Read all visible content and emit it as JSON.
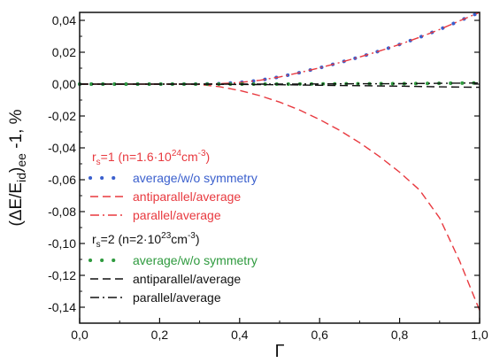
{
  "chart_data": {
    "type": "line",
    "xlabel": "Γ",
    "ylabel": {
      "open": "(ΔE/E",
      "sub1": "id",
      "close": ")",
      "sub2": "ee",
      "tail": " -1, %"
    },
    "xlim": [
      0.0,
      1.0
    ],
    "ylim": [
      -0.15,
      0.045
    ],
    "x_ticks": [
      {
        "value": 0.0,
        "label": "0,0"
      },
      {
        "value": 0.2,
        "label": "0,2"
      },
      {
        "value": 0.4,
        "label": "0,4"
      },
      {
        "value": 0.6,
        "label": "0,6"
      },
      {
        "value": 0.8,
        "label": "0,8"
      },
      {
        "value": 1.0,
        "label": "1,0"
      }
    ],
    "y_ticks": [
      {
        "value": 0.04,
        "label": "0,04"
      },
      {
        "value": 0.02,
        "label": "0,02"
      },
      {
        "value": 0.0,
        "label": "0,00"
      },
      {
        "value": -0.02,
        "label": "-0,02"
      },
      {
        "value": -0.04,
        "label": "-0,04"
      },
      {
        "value": -0.06,
        "label": "-0,06"
      },
      {
        "value": -0.08,
        "label": "-0,08"
      },
      {
        "value": -0.1,
        "label": "-0,10"
      },
      {
        "value": -0.12,
        "label": "-0,12"
      },
      {
        "value": -0.14,
        "label": "-0,14"
      }
    ],
    "grid": false,
    "legend_placement": "left",
    "groups": [
      {
        "header_parts": [
          "r",
          "s",
          "=1 (n=1.6·10",
          "24",
          "cm",
          "-3",
          ")"
        ],
        "color": "#e8393f"
      },
      {
        "header_parts": [
          "r",
          "s",
          "=2 (n=2·10",
          "23",
          "cm",
          "-3",
          ")"
        ],
        "color": "#111111"
      }
    ],
    "series": [
      {
        "name": "average/w/o symmetry",
        "group": 0,
        "color": "#3a5fcd",
        "style": "dots",
        "x": [
          0.0,
          0.05,
          0.1,
          0.15,
          0.2,
          0.25,
          0.3,
          0.35,
          0.4,
          0.45,
          0.5,
          0.55,
          0.6,
          0.65,
          0.7,
          0.75,
          0.8,
          0.85,
          0.9,
          0.95,
          1.0
        ],
        "y": [
          0.0,
          0.0,
          0.0,
          0.0,
          0.0,
          0.0,
          0.0,
          0.0003,
          0.001,
          0.0024,
          0.0045,
          0.0072,
          0.0102,
          0.0135,
          0.017,
          0.0208,
          0.0249,
          0.0294,
          0.0343,
          0.0397,
          0.045
        ]
      },
      {
        "name": "antiparallel/average",
        "group": 0,
        "color": "#e8393f",
        "style": "dash",
        "x": [
          0.0,
          0.05,
          0.1,
          0.15,
          0.2,
          0.25,
          0.3,
          0.35,
          0.4,
          0.45,
          0.5,
          0.55,
          0.6,
          0.65,
          0.7,
          0.75,
          0.8,
          0.85,
          0.9,
          0.95,
          1.0
        ],
        "y": [
          0.0,
          0.0,
          0.0,
          0.0,
          0.0,
          0.0,
          -0.0003,
          -0.0016,
          -0.004,
          -0.0072,
          -0.0113,
          -0.0163,
          -0.0222,
          -0.029,
          -0.0368,
          -0.0455,
          -0.0553,
          -0.0665,
          -0.084,
          -0.111,
          -0.142
        ]
      },
      {
        "name": "parallel/average",
        "group": 0,
        "color": "#e8393f",
        "style": "dashdot",
        "x": [
          0.0,
          0.05,
          0.1,
          0.15,
          0.2,
          0.25,
          0.3,
          0.35,
          0.4,
          0.45,
          0.5,
          0.55,
          0.6,
          0.65,
          0.7,
          0.75,
          0.8,
          0.85,
          0.9,
          0.95,
          1.0
        ],
        "y": [
          0.0,
          0.0,
          0.0,
          0.0,
          0.0,
          0.0,
          0.0,
          0.0003,
          0.001,
          0.0024,
          0.0045,
          0.0072,
          0.0102,
          0.0135,
          0.017,
          0.0208,
          0.0249,
          0.0294,
          0.0343,
          0.0397,
          0.045
        ]
      },
      {
        "name": "average/w/o symmetry",
        "group": 1,
        "color": "#2e9a3e",
        "style": "dots",
        "x": [
          0.0,
          0.1,
          0.2,
          0.3,
          0.4,
          0.5,
          0.6,
          0.7,
          0.8,
          0.9,
          1.0
        ],
        "y": [
          0.0,
          0.0,
          0.0,
          0.0,
          0.0,
          0.0,
          0.0001,
          0.0002,
          0.0003,
          0.0005,
          0.0007
        ]
      },
      {
        "name": "antiparallel/average",
        "group": 1,
        "color": "#111111",
        "style": "dash",
        "x": [
          0.0,
          0.1,
          0.2,
          0.3,
          0.4,
          0.5,
          0.6,
          0.7,
          0.8,
          0.9,
          1.0
        ],
        "y": [
          0.0,
          0.0,
          0.0,
          0.0,
          -0.0002,
          -0.0004,
          -0.0007,
          -0.001,
          -0.0013,
          -0.0017,
          -0.002
        ]
      },
      {
        "name": "parallel/average",
        "group": 1,
        "color": "#111111",
        "style": "dashdot",
        "x": [
          0.0,
          0.1,
          0.2,
          0.3,
          0.4,
          0.5,
          0.6,
          0.7,
          0.8,
          0.9,
          1.0
        ],
        "y": [
          0.0,
          0.0,
          0.0,
          0.0,
          0.0,
          0.0,
          0.0001,
          0.0002,
          0.0003,
          0.0005,
          0.0007
        ]
      }
    ]
  }
}
